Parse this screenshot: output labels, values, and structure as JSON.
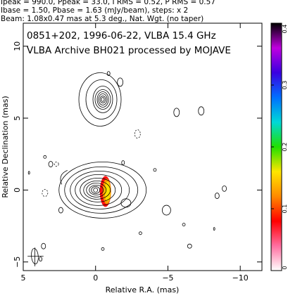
{
  "header": {
    "line1": "Ipeak = 990.0, Ppeak = 33.0, I RMS = 0.52, P RMS = 0.57",
    "line2": "Ibase = 1.50, Pbase = 1.63 (mJy/beam), steps: x 2",
    "line3": "Beam: 1.08x0.47 mas at 5.3 deg., Nat. Wgt. (no taper)"
  },
  "plot_title": {
    "line1": "0851+202, 1996-06-22, VLBA 15.4 GHz",
    "line2": "VLBA Archive BH021 processed by MOJAVE"
  },
  "chart_data": {
    "type": "contour",
    "xlabel": "Relative R.A. (mas)",
    "ylabel": "Relative Declination (mas)",
    "xlim": [
      5,
      -11.5
    ],
    "ylim": [
      -5.6,
      11.6
    ],
    "x_ticks": [
      {
        "v": 5,
        "label": "5"
      },
      {
        "v": 0,
        "label": "0"
      },
      {
        "v": -5,
        "label": "−5"
      },
      {
        "v": -10,
        "label": "−10"
      }
    ],
    "y_ticks": [
      {
        "v": -5,
        "label": "−5"
      },
      {
        "v": 0,
        "label": "0"
      },
      {
        "v": 5,
        "label": "5"
      },
      {
        "v": 10,
        "label": "10"
      }
    ],
    "grid": false,
    "core": {
      "x": 0,
      "y": 0
    },
    "knot": {
      "x": -0.5,
      "y": 6.3
    },
    "beam": {
      "major_mas": 1.08,
      "minor_mas": 0.47,
      "pa_deg": 5.3
    },
    "colorbar": {
      "min": 0,
      "max": 0.4,
      "tick_labels": [
        "0",
        "0.1",
        "0.2",
        "0.3",
        "0.4"
      ],
      "colors": [
        "#ffffff",
        "#ff6ea0",
        "#ff0000",
        "#ff8a00",
        "#ffe600",
        "#20e000",
        "#00d8d8",
        "#0070ff",
        "#3a00e0",
        "#c000e0",
        "#000000"
      ]
    }
  }
}
